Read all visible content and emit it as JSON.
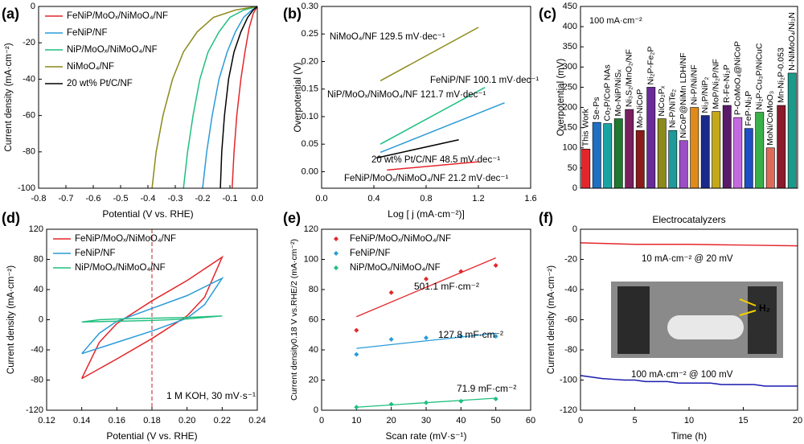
{
  "chart_data": [
    {
      "type": "line",
      "panel": "(a)",
      "xlabel": "Potential (V vs. RHE)",
      "ylabel": "Current density (mA·cm⁻²)",
      "xlim": [
        -0.8,
        0
      ],
      "ylim": [
        -100,
        0
      ],
      "xticks": [
        -0.8,
        -0.7,
        -0.6,
        -0.5,
        -0.4,
        -0.3,
        -0.2,
        -0.1,
        {
          "value": 0,
          "label": "0.0"
        }
      ],
      "yticks": [
        -100,
        -80,
        -60,
        -40,
        -20,
        0
      ],
      "legend": "upper left",
      "series": [
        {
          "name": "FeNiP/MoOₓ/NiMoO₄/NF",
          "color": "#e4262b",
          "x": [
            -0.092,
            -0.085,
            -0.075,
            -0.06,
            -0.045,
            -0.03,
            -0.015,
            0
          ],
          "values": [
            -100,
            -80,
            -60,
            -40,
            -25,
            -12,
            -4,
            0
          ]
        },
        {
          "name": "FeNiP/NF",
          "color": "#2b9bd8",
          "x": [
            -0.2,
            -0.185,
            -0.165,
            -0.14,
            -0.11,
            -0.08,
            -0.05,
            -0.02,
            0
          ],
          "values": [
            -100,
            -80,
            -60,
            -40,
            -25,
            -14,
            -6,
            -2,
            0
          ]
        },
        {
          "name": "NiP/MoOₓ/NiMoO₄/NF",
          "color": "#1fbf7f",
          "x": [
            -0.27,
            -0.255,
            -0.235,
            -0.21,
            -0.18,
            -0.14,
            -0.1,
            -0.05,
            0
          ],
          "values": [
            -100,
            -80,
            -60,
            -40,
            -25,
            -14,
            -6,
            -2,
            0
          ]
        },
        {
          "name": "NiMoO₄/NF",
          "color": "#8c8a1a",
          "x": [
            -0.385,
            -0.37,
            -0.345,
            -0.31,
            -0.27,
            -0.22,
            -0.16,
            -0.08,
            0
          ],
          "values": [
            -100,
            -80,
            -60,
            -40,
            -25,
            -14,
            -6,
            -2,
            0
          ]
        },
        {
          "name": "20 wt% Pt/C/NF",
          "color": "#000000",
          "x": [
            -0.135,
            -0.13,
            -0.12,
            -0.105,
            -0.085,
            -0.06,
            -0.035,
            -0.015,
            0
          ],
          "values": [
            -100,
            -80,
            -60,
            -40,
            -25,
            -14,
            -6,
            -2,
            0
          ]
        }
      ]
    },
    {
      "type": "line",
      "panel": "(b)",
      "xlabel": "Log [ j (mA·cm⁻²)]",
      "ylabel": "Overpotential (V)",
      "xlim": [
        0,
        1.6
      ],
      "ylim": [
        -0.03,
        0.3
      ],
      "xticks": [
        {
          "value": 0,
          "label": "0.0"
        },
        0.4,
        0.8,
        1.2,
        1.6
      ],
      "yticks": [
        {
          "value": 0,
          "label": "0.00"
        },
        0.05,
        {
          "value": 0.1,
          "label": "0.10"
        },
        0.15,
        {
          "value": 0.2,
          "label": "0.20"
        },
        0.25,
        {
          "value": 0.3,
          "label": "0.30"
        }
      ],
      "series": [
        {
          "name": "NiMoO₄/NF 129.5 mV·dec⁻¹",
          "color": "#8c8a1a",
          "x": [
            0.45,
            1.2
          ],
          "values": [
            0.165,
            0.262
          ]
        },
        {
          "name": "FeNiP/NF 100.1 mV·dec⁻¹",
          "color": "#2b9bd8",
          "x": [
            0.45,
            1.4
          ],
          "values": [
            0.035,
            0.125
          ]
        },
        {
          "name": "NiP/MoOₓ/NiMoO₄/NF 121.7 mV·dec⁻¹",
          "color": "#1fbf7f",
          "x": [
            0.45,
            1.25
          ],
          "values": [
            0.05,
            0.153
          ]
        },
        {
          "name": "20 wt% Pt/C/NF 48.5 mV·dec⁻¹",
          "color": "#000000",
          "x": [
            0.42,
            1.05
          ],
          "values": [
            0.025,
            0.058
          ]
        },
        {
          "name": "FeNiP/MoOₓ/NiMoO₄/NF 21.2 mV·dec⁻¹",
          "color": "#e4262b",
          "x": [
            0.5,
            1.2
          ],
          "values": [
            0.003,
            0.018
          ]
        }
      ]
    },
    {
      "type": "bar",
      "panel": "(c)",
      "ylabel": "Overpotential (mV)",
      "annotation": "100 mA·cm⁻²",
      "ylim": [
        0,
        450
      ],
      "yticks": [
        0,
        50,
        100,
        150,
        200,
        250,
        300,
        350,
        400,
        450
      ],
      "categories": [
        "This Work",
        "Se-Ps",
        "Co₂P/CoP NAs",
        "Mo-NiP/NiSₓ",
        "Ni₃S₂/MnO₂/NF",
        "Mo-NiCoP",
        "Ni₂P-Fe₂P",
        "NiCo₂Pₓ",
        "Ni-P/NiTe₂",
        "NiCoP@NiMn LDH/NF",
        "Ni-P/Ni/NF",
        "Ni₃P/NiP₂",
        "MoP/Ni₂P/NF",
        "R-Fe-Ni₂P",
        "P-CoMoO₄@NiCoP",
        "FeP-Ni₂P",
        "Ni₂P-Cu₃P/NiCuC",
        "MoNi/CoMoO₃",
        "Mn-Ni₂P-0.053",
        "N-NiMoO₄/Ni₃N"
      ],
      "values": [
        97,
        163,
        160,
        172,
        195,
        143,
        250,
        172,
        143,
        118,
        200,
        180,
        190,
        205,
        175,
        148,
        188,
        100,
        205,
        285
      ],
      "colors": [
        "#e4262b",
        "#1f6fc4",
        "#1aa3a3",
        "#1e7a2e",
        "#7a1f5e",
        "#8b1a1a",
        "#6a2a9a",
        "#8c8a1a",
        "#1f9a9a",
        "#9b4fc4",
        "#e08a1a",
        "#1a2a8b",
        "#c4a81a",
        "#5a1a6a",
        "#c46ae0",
        "#1f4fc4",
        "#3ab04a",
        "#e06a5a",
        "#8b1a2a",
        "#1a9a8a"
      ]
    },
    {
      "type": "line",
      "panel": "(d)",
      "xlabel": "Potential (V vs. RHE)",
      "ylabel": "Current density (mA·cm⁻²)",
      "annotation": "1 M KOH, 30 mV·s⁻¹",
      "vline": 0.18,
      "xlim": [
        0.12,
        0.24
      ],
      "ylim": [
        -120,
        120
      ],
      "xticks": [
        0.12,
        0.14,
        0.16,
        0.18,
        {
          "value": 0.2,
          "label": "0.20"
        },
        0.22,
        0.24
      ],
      "yticks": [
        -120,
        -80,
        -40,
        0,
        40,
        80,
        120
      ],
      "legend": "upper left",
      "series": [
        {
          "name": "FeNiP/MoOₓ/NiMoO₄/NF",
          "color": "#e4262b",
          "x": [
            0.14,
            0.15,
            0.16,
            0.18,
            0.2,
            0.22,
            0.21,
            0.2,
            0.18,
            0.16,
            0.14
          ],
          "values": [
            -78,
            -30,
            -5,
            25,
            52,
            83,
            30,
            5,
            -25,
            -52,
            -78
          ]
        },
        {
          "name": "FeNiP/NF",
          "color": "#2b9bd8",
          "x": [
            0.14,
            0.15,
            0.16,
            0.18,
            0.2,
            0.22,
            0.21,
            0.2,
            0.18,
            0.16,
            0.14
          ],
          "values": [
            -45,
            -18,
            -2,
            15,
            32,
            55,
            20,
            2,
            -15,
            -30,
            -45
          ]
        },
        {
          "name": "NiP/MoOₓ/NiMoO₄/NF",
          "color": "#1fbf7f",
          "x": [
            0.14,
            0.15,
            0.16,
            0.18,
            0.2,
            0.22,
            0.21,
            0.2,
            0.18,
            0.16,
            0.14
          ],
          "values": [
            -3,
            0,
            1,
            2,
            3,
            5,
            3,
            1,
            -1,
            -2,
            -3
          ]
        }
      ]
    },
    {
      "type": "scatter",
      "panel": "(e)",
      "xlabel": "Scan rate (mV·s⁻¹)",
      "ylabel": "Current density0.18 V vs.RHE/2 (mA·cm⁻²)",
      "xlim": [
        0,
        60
      ],
      "ylim": [
        0,
        120
      ],
      "xticks": [
        0,
        10,
        20,
        30,
        40,
        50,
        60
      ],
      "yticks": [
        0,
        20,
        40,
        60,
        80,
        100,
        120
      ],
      "legend": "upper left",
      "series": [
        {
          "name": "FeNiP/MoOₓ/NiMoO₄/NF",
          "color": "#e4262b",
          "x": [
            10,
            20,
            30,
            40,
            50
          ],
          "values": [
            53,
            78,
            87,
            92,
            96
          ],
          "fit_x": [
            10,
            50
          ],
          "fit_values": [
            62,
            101
          ],
          "annotation": "501.1 mF·cm⁻²"
        },
        {
          "name": "FeNiP/NF",
          "color": "#2b9bd8",
          "x": [
            10,
            20,
            30,
            40,
            50
          ],
          "values": [
            37,
            47,
            48,
            49,
            49
          ],
          "fit_x": [
            10,
            50
          ],
          "fit_values": [
            41,
            51
          ],
          "annotation": "127.8 mF·cm⁻²"
        },
        {
          "name": "NiP/MoOₓ/NiMoO₄/NF",
          "color": "#1fbf7f",
          "x": [
            10,
            20,
            30,
            40,
            50
          ],
          "values": [
            2,
            4,
            5,
            6,
            7.5
          ],
          "fit_x": [
            10,
            50
          ],
          "fit_values": [
            2,
            8
          ],
          "annotation": "71.9 mF·cm⁻²"
        }
      ]
    },
    {
      "type": "line",
      "panel": "(f)",
      "title": "Electrocatalyzers",
      "xlabel": "Time (h)",
      "ylabel": "Current density (mA·cm⁻²)",
      "annotation": "H₂",
      "xlim": [
        0,
        20
      ],
      "ylim": [
        -120,
        0
      ],
      "xticks": [
        0,
        5,
        10,
        15,
        20
      ],
      "yticks": [
        -120,
        -100,
        -80,
        -60,
        -40,
        -20,
        0
      ],
      "series": [
        {
          "name": "10 mA·cm⁻² @ 20 mV",
          "color": "#e4262b",
          "x": [
            0,
            5,
            10,
            15,
            20
          ],
          "values": [
            -9,
            -10,
            -10,
            -10.5,
            -11
          ]
        },
        {
          "name": "100 mA·cm⁻² @ 100 mV",
          "color": "#1a1ab0",
          "x": [
            0,
            1,
            2,
            3,
            4,
            5,
            6,
            7,
            8,
            9,
            10,
            11,
            12,
            13,
            14,
            15,
            16,
            17,
            18,
            19,
            20
          ],
          "values": [
            -97,
            -98,
            -99,
            -99.5,
            -100,
            -100,
            -101,
            -101,
            -101,
            -102,
            -102,
            -102,
            -102,
            -103,
            -103,
            -103,
            -103,
            -104,
            -104,
            -104,
            -104
          ]
        }
      ]
    }
  ]
}
